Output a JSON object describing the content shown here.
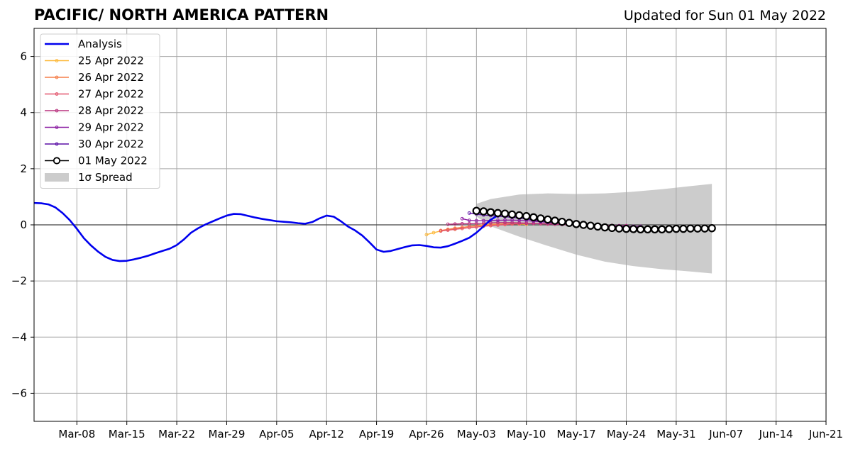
{
  "header": {
    "title": "PACIFIC/ NORTH AMERICA PATTERN",
    "updated": "Updated for Sun 01 May 2022"
  },
  "chart_data": {
    "type": "line",
    "title": "PACIFIC/ NORTH AMERICA PATTERN",
    "subtitle": "Updated for Sun 01 May 2022",
    "xlabel": "",
    "ylabel": "",
    "xlim": [
      "2022-03-02",
      "2022-06-21"
    ],
    "ylim": [
      -7,
      7
    ],
    "grid": true,
    "legend_position": "upper-left",
    "x_ticks": [
      {
        "date": "2022-03-08",
        "label": "Mar-08"
      },
      {
        "date": "2022-03-15",
        "label": "Mar-15"
      },
      {
        "date": "2022-03-22",
        "label": "Mar-22"
      },
      {
        "date": "2022-03-29",
        "label": "Mar-29"
      },
      {
        "date": "2022-04-05",
        "label": "Apr-05"
      },
      {
        "date": "2022-04-12",
        "label": "Apr-12"
      },
      {
        "date": "2022-04-19",
        "label": "Apr-19"
      },
      {
        "date": "2022-04-26",
        "label": "Apr-26"
      },
      {
        "date": "2022-05-03",
        "label": "May-03"
      },
      {
        "date": "2022-05-10",
        "label": "May-10"
      },
      {
        "date": "2022-05-17",
        "label": "May-17"
      },
      {
        "date": "2022-05-24",
        "label": "May-24"
      },
      {
        "date": "2022-05-31",
        "label": "May-31"
      },
      {
        "date": "2022-06-07",
        "label": "Jun-07"
      },
      {
        "date": "2022-06-14",
        "label": "Jun-14"
      },
      {
        "date": "2022-06-21",
        "label": "Jun-21"
      }
    ],
    "y_ticks": [
      {
        "value": 6,
        "label": "6"
      },
      {
        "value": 4,
        "label": "4"
      },
      {
        "value": 2,
        "label": "2"
      },
      {
        "value": 0,
        "label": "0"
      },
      {
        "value": -2,
        "label": "−2"
      },
      {
        "value": -4,
        "label": "−4"
      },
      {
        "value": -6,
        "label": "−6"
      }
    ],
    "analysis": {
      "name": "Analysis",
      "color": "#0000ee",
      "start_date": "2022-03-02",
      "values": [
        0.78,
        0.77,
        0.73,
        0.62,
        0.42,
        0.17,
        -0.14,
        -0.48,
        -0.74,
        -0.96,
        -1.14,
        -1.25,
        -1.29,
        -1.28,
        -1.23,
        -1.17,
        -1.1,
        -1.01,
        -0.93,
        -0.85,
        -0.72,
        -0.52,
        -0.28,
        -0.12,
        0.01,
        0.12,
        0.23,
        0.33,
        0.39,
        0.38,
        0.32,
        0.26,
        0.21,
        0.17,
        0.13,
        0.11,
        0.09,
        0.06,
        0.04,
        0.1,
        0.23,
        0.33,
        0.29,
        0.13,
        -0.06,
        -0.2,
        -0.38,
        -0.62,
        -0.88,
        -0.96,
        -0.93,
        -0.86,
        -0.79,
        -0.73,
        -0.72,
        -0.75,
        -0.8,
        -0.81,
        -0.76,
        -0.67,
        -0.57,
        -0.46,
        -0.28,
        -0.05,
        0.18,
        0.34,
        0.45
      ]
    },
    "forecasts": [
      {
        "name": "25 Apr 2022",
        "color": "#fdb93a",
        "start_date": "2022-04-26",
        "values": [
          -0.35,
          -0.28,
          -0.22,
          -0.18,
          -0.14,
          -0.1,
          -0.06,
          -0.03,
          0.0,
          0.02,
          0.03,
          0.04,
          0.04,
          0.03,
          0.02
        ]
      },
      {
        "name": "26 Apr 2022",
        "color": "#f57e49",
        "start_date": "2022-04-28",
        "values": [
          -0.2,
          -0.16,
          -0.12,
          -0.09,
          -0.06,
          -0.04,
          -0.02,
          0.0,
          0.02,
          0.03,
          0.04,
          0.05,
          0.05,
          0.05,
          0.04,
          0.03
        ]
      },
      {
        "name": "27 Apr 2022",
        "color": "#e3566e",
        "start_date": "2022-04-28",
        "values": [
          -0.22,
          -0.19,
          -0.16,
          -0.13,
          -0.1,
          -0.08,
          -0.05,
          -0.03,
          -0.01,
          0.01,
          0.03,
          0.04,
          0.05,
          0.05,
          0.05,
          0.04,
          0.03
        ]
      },
      {
        "name": "28 Apr 2022",
        "color": "#b8327e",
        "start_date": "2022-04-29",
        "values": [
          0.02,
          0.03,
          0.04,
          0.04,
          0.05,
          0.06,
          0.07,
          0.08,
          0.08,
          0.08,
          0.07,
          0.06,
          0.05,
          0.04,
          0.03,
          0.02,
          0.01,
          0.0,
          -0.01,
          -0.02,
          -0.02,
          -0.02,
          -0.02,
          -0.02,
          -0.03,
          -0.03
        ]
      },
      {
        "name": "29 Apr 2022",
        "color": "#8c1fa3",
        "start_date": "2022-05-01",
        "values": [
          0.22,
          0.16,
          0.15,
          0.15,
          0.16,
          0.16,
          0.17,
          0.17,
          0.16,
          0.15,
          0.13,
          0.11,
          0.09,
          0.07,
          0.05,
          0.03,
          0.01,
          -0.01,
          -0.02,
          -0.03,
          -0.04,
          -0.04,
          -0.04,
          -0.05,
          -0.05,
          -0.05
        ]
      },
      {
        "name": "30 Apr 2022",
        "color": "#5a0fa6",
        "start_date": "2022-05-02",
        "values": [
          0.42,
          0.38,
          0.35,
          0.33,
          0.31,
          0.29,
          0.27,
          0.24,
          0.21,
          0.17,
          0.13,
          0.09,
          0.06
        ]
      },
      {
        "name": "01 May 2022",
        "color": "#000000",
        "start_date": "2022-05-03",
        "values": [
          0.5,
          0.48,
          0.45,
          0.42,
          0.4,
          0.37,
          0.34,
          0.31,
          0.27,
          0.23,
          0.19,
          0.15,
          0.11,
          0.07,
          0.03,
          0.0,
          -0.03,
          -0.06,
          -0.09,
          -0.11,
          -0.13,
          -0.14,
          -0.15,
          -0.16,
          -0.16,
          -0.16,
          -0.16,
          -0.15,
          -0.14,
          -0.14,
          -0.13,
          -0.13,
          -0.13,
          -0.12
        ]
      }
    ],
    "spread": {
      "name": "1σ Spread",
      "color": "#cccccc",
      "dates": [
        "2022-05-03",
        "2022-05-05",
        "2022-05-09",
        "2022-05-13",
        "2022-05-17",
        "2022-05-21",
        "2022-05-25",
        "2022-05-29",
        "2022-06-02",
        "2022-06-05"
      ],
      "upper": [
        0.75,
        0.92,
        1.08,
        1.12,
        1.1,
        1.12,
        1.18,
        1.27,
        1.38,
        1.46
      ],
      "lower": [
        0.3,
        -0.05,
        -0.42,
        -0.75,
        -1.06,
        -1.31,
        -1.47,
        -1.58,
        -1.66,
        -1.73
      ]
    },
    "legend": [
      {
        "label": "Analysis",
        "kind": "line",
        "color": "#0000ee"
      },
      {
        "label": "25 Apr 2022",
        "kind": "marker-line",
        "color": "#fdb93a"
      },
      {
        "label": "26 Apr 2022",
        "kind": "marker-line",
        "color": "#f57e49"
      },
      {
        "label": "27 Apr 2022",
        "kind": "marker-line",
        "color": "#e3566e"
      },
      {
        "label": "28 Apr 2022",
        "kind": "marker-line",
        "color": "#b8327e"
      },
      {
        "label": "29 Apr 2022",
        "kind": "marker-line",
        "color": "#8c1fa3"
      },
      {
        "label": "30 Apr 2022",
        "kind": "marker-line",
        "color": "#5a0fa6"
      },
      {
        "label": "01 May 2022",
        "kind": "big-marker-line",
        "color": "#000000"
      },
      {
        "label": "1σ Spread",
        "kind": "patch",
        "color": "#cccccc"
      }
    ]
  }
}
